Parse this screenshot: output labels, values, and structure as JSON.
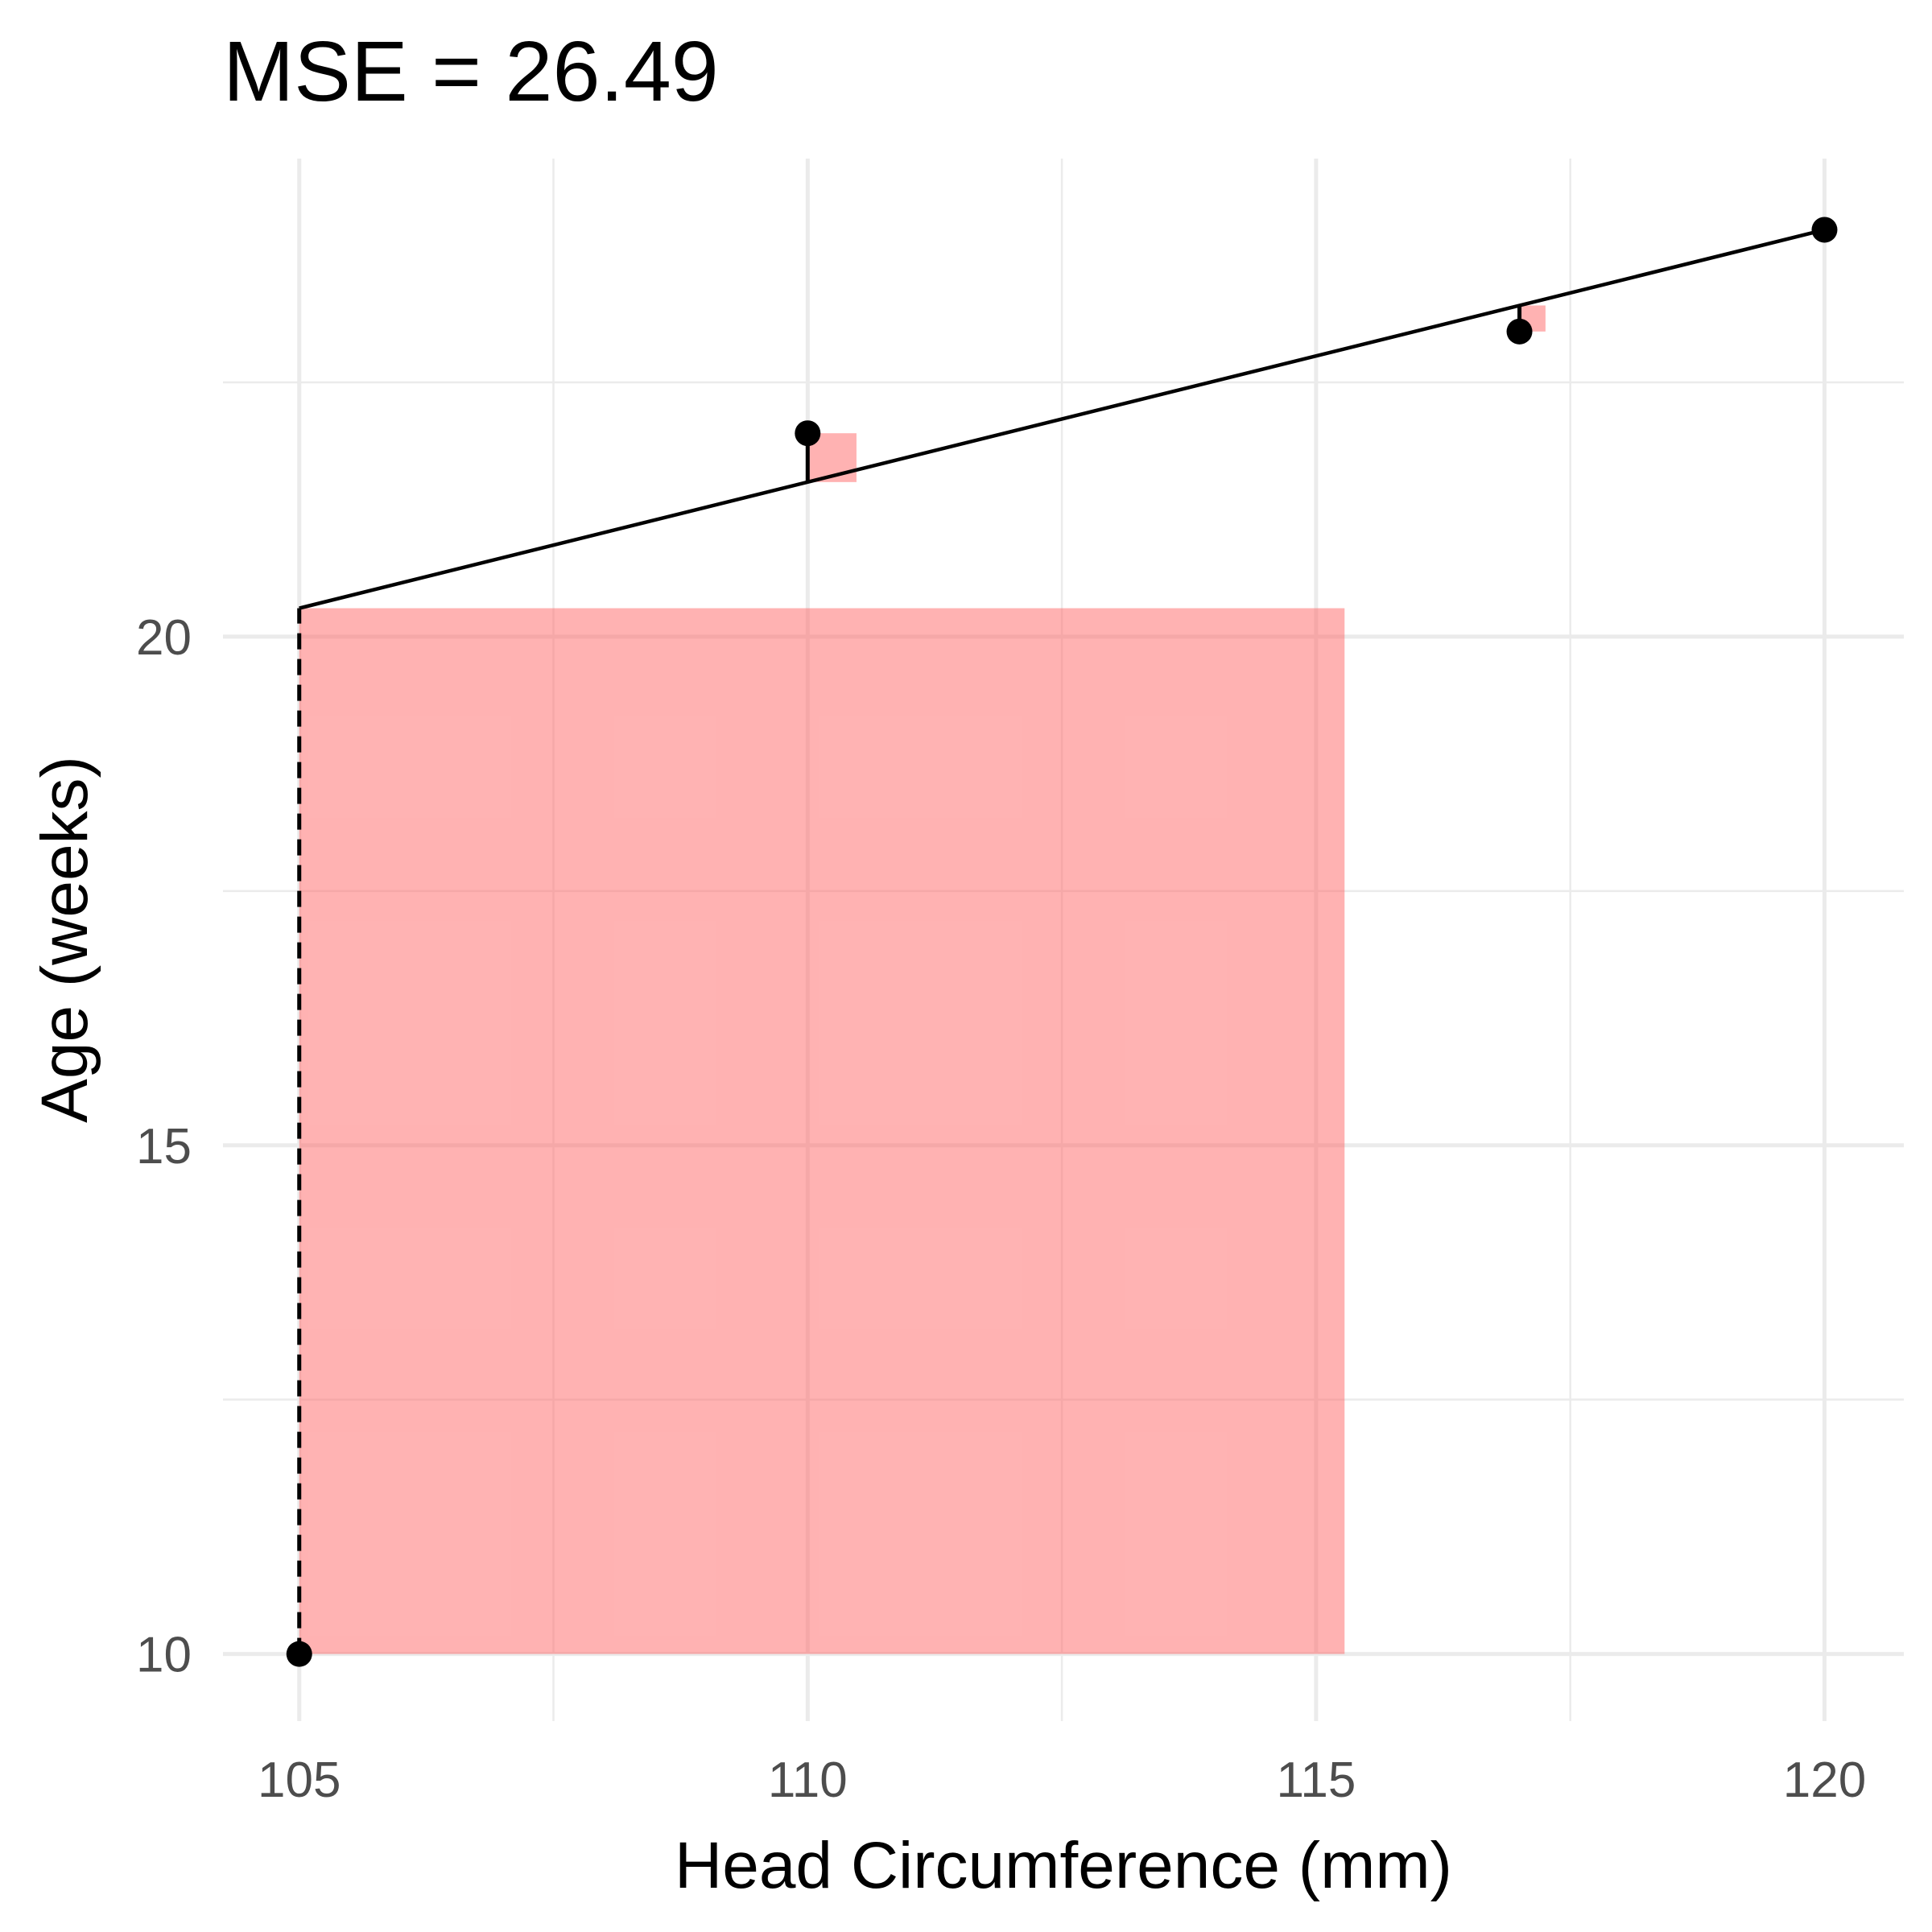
{
  "chart_data": {
    "type": "scatter",
    "title": "MSE =  26.49",
    "xlabel": "Head Circumference (mm)",
    "ylabel": "Age (weeks)",
    "xlim": [
      104.25,
      120.78
    ],
    "ylim": [
      9.34,
      24.7
    ],
    "xticks": [
      105,
      110,
      115,
      120
    ],
    "xtick_labels": [
      "105",
      "110",
      "115",
      "120"
    ],
    "xminor": [
      107.5,
      112.5,
      117.5
    ],
    "yticks": [
      10,
      15,
      20
    ],
    "ytick_labels": [
      "10",
      "15",
      "20"
    ],
    "yminor": [
      12.5,
      17.5,
      22.5
    ],
    "grid": true,
    "points": [
      {
        "x": 105,
        "y": 10
      },
      {
        "x": 110,
        "y": 22
      },
      {
        "x": 117,
        "y": 23
      },
      {
        "x": 120,
        "y": 24
      }
    ],
    "fit_line": {
      "intercept_at_105": 20.28,
      "slope": 0.248,
      "x_range": [
        105,
        120
      ]
    },
    "colors": {
      "square": "#ff6666",
      "point": "#000000",
      "line": "#000000",
      "grid": "#ebebeb"
    }
  }
}
